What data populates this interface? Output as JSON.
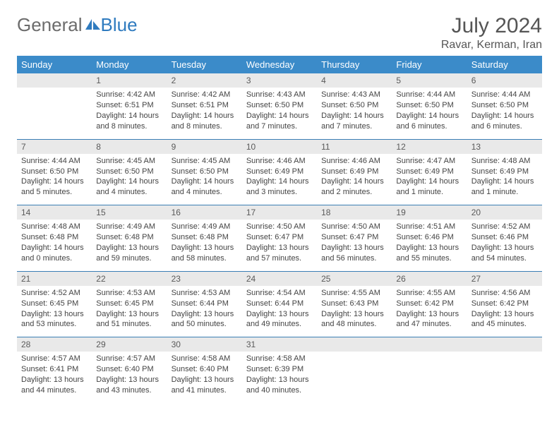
{
  "brand": {
    "part1": "General",
    "part2": "Blue"
  },
  "title": "July 2024",
  "location": "Ravar, Kerman, Iran",
  "colors": {
    "header_bg": "#3b8bc9",
    "header_text": "#ffffff",
    "daynum_bg": "#e9e9e9",
    "row_border": "#3b7fb5",
    "brand_grey": "#6c6c6c",
    "brand_blue": "#2f7bbf"
  },
  "columns": [
    "Sunday",
    "Monday",
    "Tuesday",
    "Wednesday",
    "Thursday",
    "Friday",
    "Saturday"
  ],
  "weeks": [
    [
      null,
      {
        "n": "1",
        "sr": "4:42 AM",
        "ss": "6:51 PM",
        "dl": "14 hours and 8 minutes."
      },
      {
        "n": "2",
        "sr": "4:42 AM",
        "ss": "6:51 PM",
        "dl": "14 hours and 8 minutes."
      },
      {
        "n": "3",
        "sr": "4:43 AM",
        "ss": "6:50 PM",
        "dl": "14 hours and 7 minutes."
      },
      {
        "n": "4",
        "sr": "4:43 AM",
        "ss": "6:50 PM",
        "dl": "14 hours and 7 minutes."
      },
      {
        "n": "5",
        "sr": "4:44 AM",
        "ss": "6:50 PM",
        "dl": "14 hours and 6 minutes."
      },
      {
        "n": "6",
        "sr": "4:44 AM",
        "ss": "6:50 PM",
        "dl": "14 hours and 6 minutes."
      }
    ],
    [
      {
        "n": "7",
        "sr": "4:44 AM",
        "ss": "6:50 PM",
        "dl": "14 hours and 5 minutes."
      },
      {
        "n": "8",
        "sr": "4:45 AM",
        "ss": "6:50 PM",
        "dl": "14 hours and 4 minutes."
      },
      {
        "n": "9",
        "sr": "4:45 AM",
        "ss": "6:50 PM",
        "dl": "14 hours and 4 minutes."
      },
      {
        "n": "10",
        "sr": "4:46 AM",
        "ss": "6:49 PM",
        "dl": "14 hours and 3 minutes."
      },
      {
        "n": "11",
        "sr": "4:46 AM",
        "ss": "6:49 PM",
        "dl": "14 hours and 2 minutes."
      },
      {
        "n": "12",
        "sr": "4:47 AM",
        "ss": "6:49 PM",
        "dl": "14 hours and 1 minute."
      },
      {
        "n": "13",
        "sr": "4:48 AM",
        "ss": "6:49 PM",
        "dl": "14 hours and 1 minute."
      }
    ],
    [
      {
        "n": "14",
        "sr": "4:48 AM",
        "ss": "6:48 PM",
        "dl": "14 hours and 0 minutes."
      },
      {
        "n": "15",
        "sr": "4:49 AM",
        "ss": "6:48 PM",
        "dl": "13 hours and 59 minutes."
      },
      {
        "n": "16",
        "sr": "4:49 AM",
        "ss": "6:48 PM",
        "dl": "13 hours and 58 minutes."
      },
      {
        "n": "17",
        "sr": "4:50 AM",
        "ss": "6:47 PM",
        "dl": "13 hours and 57 minutes."
      },
      {
        "n": "18",
        "sr": "4:50 AM",
        "ss": "6:47 PM",
        "dl": "13 hours and 56 minutes."
      },
      {
        "n": "19",
        "sr": "4:51 AM",
        "ss": "6:46 PM",
        "dl": "13 hours and 55 minutes."
      },
      {
        "n": "20",
        "sr": "4:52 AM",
        "ss": "6:46 PM",
        "dl": "13 hours and 54 minutes."
      }
    ],
    [
      {
        "n": "21",
        "sr": "4:52 AM",
        "ss": "6:45 PM",
        "dl": "13 hours and 53 minutes."
      },
      {
        "n": "22",
        "sr": "4:53 AM",
        "ss": "6:45 PM",
        "dl": "13 hours and 51 minutes."
      },
      {
        "n": "23",
        "sr": "4:53 AM",
        "ss": "6:44 PM",
        "dl": "13 hours and 50 minutes."
      },
      {
        "n": "24",
        "sr": "4:54 AM",
        "ss": "6:44 PM",
        "dl": "13 hours and 49 minutes."
      },
      {
        "n": "25",
        "sr": "4:55 AM",
        "ss": "6:43 PM",
        "dl": "13 hours and 48 minutes."
      },
      {
        "n": "26",
        "sr": "4:55 AM",
        "ss": "6:42 PM",
        "dl": "13 hours and 47 minutes."
      },
      {
        "n": "27",
        "sr": "4:56 AM",
        "ss": "6:42 PM",
        "dl": "13 hours and 45 minutes."
      }
    ],
    [
      {
        "n": "28",
        "sr": "4:57 AM",
        "ss": "6:41 PM",
        "dl": "13 hours and 44 minutes."
      },
      {
        "n": "29",
        "sr": "4:57 AM",
        "ss": "6:40 PM",
        "dl": "13 hours and 43 minutes."
      },
      {
        "n": "30",
        "sr": "4:58 AM",
        "ss": "6:40 PM",
        "dl": "13 hours and 41 minutes."
      },
      {
        "n": "31",
        "sr": "4:58 AM",
        "ss": "6:39 PM",
        "dl": "13 hours and 40 minutes."
      },
      null,
      null,
      null
    ]
  ],
  "labels": {
    "sunrise": "Sunrise:",
    "sunset": "Sunset:",
    "daylight": "Daylight:"
  }
}
